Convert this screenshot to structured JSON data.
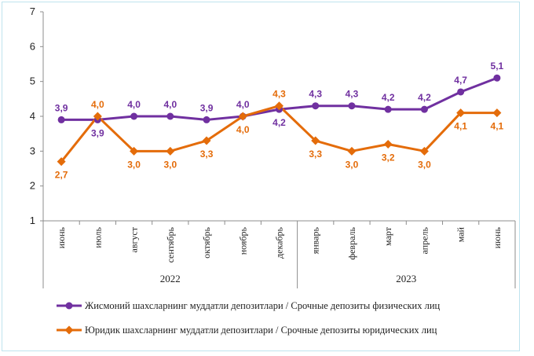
{
  "chart_data": {
    "type": "line",
    "categories": [
      "июнь",
      "июль",
      "август",
      "сентябрь",
      "октябрь",
      "ноябрь",
      "декабрь",
      "январь",
      "февраль",
      "март",
      "апрель",
      "май",
      "июнь"
    ],
    "year_groups": [
      {
        "label": "2022",
        "from": 0,
        "to": 6
      },
      {
        "label": "2023",
        "from": 7,
        "to": 12
      }
    ],
    "ylim": [
      1,
      7
    ],
    "yticks": [
      1,
      2,
      3,
      4,
      5,
      6,
      7
    ],
    "grid": false,
    "legend_position": "bottom",
    "series": [
      {
        "name": "Жисмоний шахсларнинг муддатли депозитлари / Срочные депозиты физических лиц",
        "color": "#7030a0",
        "values": [
          3.9,
          3.9,
          4.0,
          4.0,
          3.9,
          4.0,
          4.2,
          4.3,
          4.3,
          4.2,
          4.2,
          4.7,
          5.1
        ],
        "labels": [
          "3,9",
          "3,9",
          "4,0",
          "4,0",
          "3,9",
          "4,0",
          "4,2",
          "4,3",
          "4,3",
          "4,2",
          "4,2",
          "4,7",
          "5,1"
        ],
        "marker": "circle"
      },
      {
        "name": "Юридик шахсларнинг муддатли депозитлари / Срочные депозиты юридических лиц",
        "color": "#e46c0a",
        "values": [
          2.7,
          4.0,
          3.0,
          3.0,
          3.3,
          4.0,
          4.3,
          3.3,
          3.0,
          3.2,
          3.0,
          4.1,
          4.1
        ],
        "labels": [
          "2,7",
          "4,0",
          "3,0",
          "3,0",
          "3,3",
          "4,0",
          "4,3",
          "3,3",
          "3,0",
          "3,2",
          "3,0",
          "4,1",
          "4,1"
        ],
        "marker": "diamond"
      }
    ]
  }
}
